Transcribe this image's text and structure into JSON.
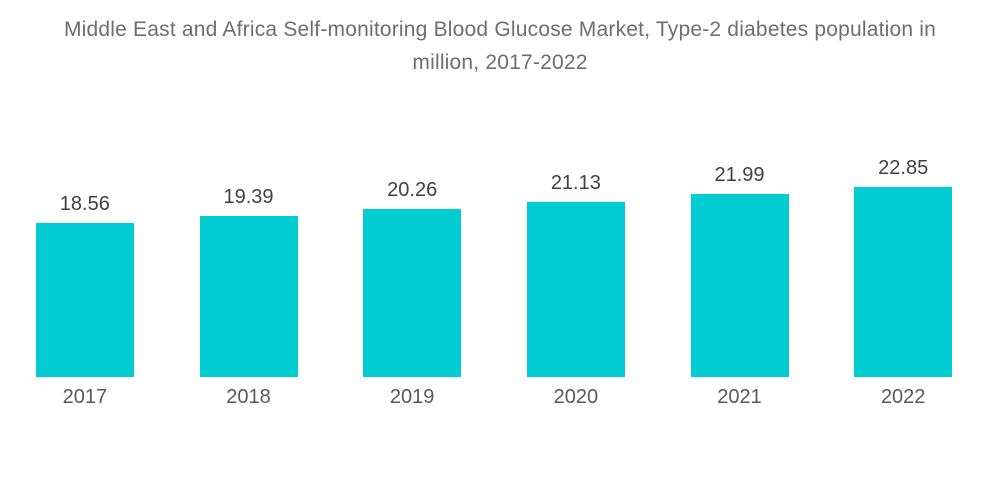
{
  "title": "Middle East and Africa Self-monitoring Blood Glucose Market, Type-2 diabetes population in million, 2017-2022",
  "chart_data": {
    "type": "bar",
    "title": "Middle East and Africa Self-monitoring Blood Glucose Market, Type-2 diabetes population in million, 2017-2022",
    "categories": [
      "2017",
      "2018",
      "2019",
      "2020",
      "2021",
      "2022"
    ],
    "values": [
      18.56,
      19.39,
      20.26,
      21.13,
      21.99,
      22.85
    ],
    "value_labels": [
      "18.56",
      "19.39",
      "20.26",
      "21.13",
      "21.99",
      "22.85"
    ],
    "xlabel": "",
    "ylabel": "",
    "ylim": [
      0,
      24
    ],
    "grid": false,
    "legend": "none",
    "value_label_position": "above-bars",
    "colors": {
      "bar": "#00CCD2",
      "title": "#6e6e6e",
      "value_label": "#414042",
      "axis_label": "#58595b",
      "background": "#ffffff"
    }
  }
}
